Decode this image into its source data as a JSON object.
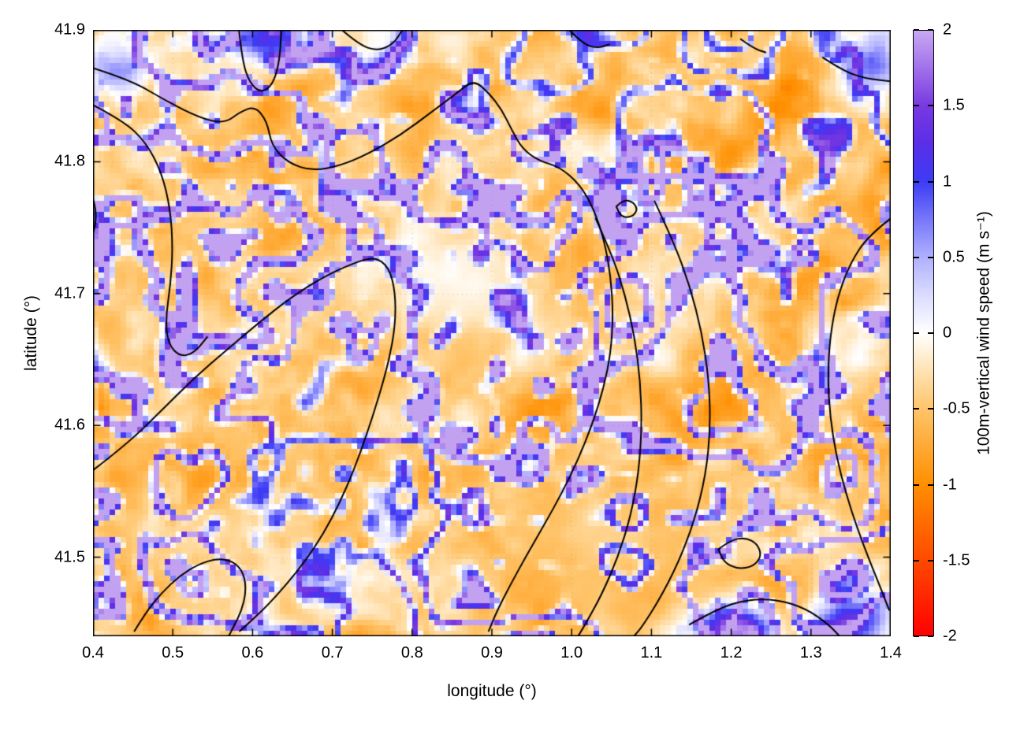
{
  "chart_data": {
    "type": "heatmap",
    "title": "",
    "xlabel": "longitude (°)",
    "ylabel": "latitude (°)",
    "x_range": [
      0.4,
      1.4
    ],
    "y_range": [
      41.44,
      41.9
    ],
    "x_ticks": [
      "0.4",
      "0.5",
      "0.6",
      "0.7",
      "0.8",
      "0.9",
      "1.0",
      "1.1",
      "1.2",
      "1.3",
      "1.4"
    ],
    "y_ticks": [
      "41.5",
      "41.6",
      "41.7",
      "41.8",
      "41.9"
    ],
    "grid": "faint dotted gridlines at major ticks",
    "legend_position": "none",
    "field_description": "Pixelated (~7 px cells) map of 100 m vertical wind speed: thin sinuous blue/purple filaments of updraft (+0.5 to +1.5 m/s) forming cellular networks over a light-orange background of weak downdraft (-0.3 to -1 m/s); paler smooth patch near (0.86, 41.71); smoother orange region near (1.0, 41.5); intense blue streaks along the bottom-right edge near (1.2, 41.45); black terrain contour lines overlaid.",
    "value_field": "100m vertical wind speed (m/s)",
    "colorbar": {
      "label": "100m-vertical wind speed (m s⁻¹)",
      "range": [
        -2,
        2
      ],
      "ticks": [
        "-2",
        "-1.5",
        "-1",
        "-0.5",
        "0",
        "0.5",
        "1",
        "1.5",
        "2"
      ],
      "colormap_stops": [
        [
          -2.0,
          "#ff0000"
        ],
        [
          -1.5,
          "#ff4a00"
        ],
        [
          -1.0,
          "#ff8f00"
        ],
        [
          -0.5,
          "#ffc46a"
        ],
        [
          -0.25,
          "#ffe2b2"
        ],
        [
          0.0,
          "#ffffff"
        ],
        [
          0.25,
          "#dcdcff"
        ],
        [
          0.5,
          "#b0b0ff"
        ],
        [
          0.75,
          "#7878fa"
        ],
        [
          1.0,
          "#3c3cf5"
        ],
        [
          1.25,
          "#5a2ee8"
        ],
        [
          1.5,
          "#7838e0"
        ],
        [
          1.75,
          "#a070ea"
        ],
        [
          2.0,
          "#c8a8f2"
        ]
      ]
    },
    "overlay_contours": {
      "color": "#000000",
      "lines": [
        [
          [
            0.4,
            41.871
          ],
          [
            0.447,
            41.862
          ],
          [
            0.492,
            41.846
          ],
          [
            0.535,
            41.833
          ],
          [
            0.565,
            41.829
          ],
          [
            0.585,
            41.838
          ],
          [
            0.603,
            41.842
          ],
          [
            0.618,
            41.831
          ],
          [
            0.624,
            41.812
          ],
          [
            0.645,
            41.799
          ],
          [
            0.675,
            41.793
          ],
          [
            0.71,
            41.797
          ],
          [
            0.745,
            41.806
          ],
          [
            0.785,
            41.82
          ],
          [
            0.825,
            41.838
          ],
          [
            0.858,
            41.853
          ],
          [
            0.877,
            41.862
          ],
          [
            0.895,
            41.853
          ],
          [
            0.912,
            41.84
          ],
          [
            0.925,
            41.824
          ],
          [
            0.938,
            41.81
          ],
          [
            0.958,
            41.801
          ],
          [
            0.985,
            41.796
          ],
          [
            1.01,
            41.783
          ],
          [
            1.028,
            41.764
          ],
          [
            1.041,
            41.74
          ],
          [
            1.049,
            41.713
          ],
          [
            1.052,
            41.684
          ],
          [
            1.049,
            41.655
          ],
          [
            1.04,
            41.628
          ],
          [
            1.026,
            41.601
          ],
          [
            1.008,
            41.574
          ],
          [
            0.988,
            41.549
          ],
          [
            0.966,
            41.525
          ],
          [
            0.944,
            41.502
          ],
          [
            0.924,
            41.48
          ],
          [
            0.907,
            41.46
          ],
          [
            0.896,
            41.444
          ]
        ],
        [
          [
            0.4,
            41.843
          ],
          [
            0.438,
            41.831
          ],
          [
            0.466,
            41.815
          ],
          [
            0.486,
            41.792
          ],
          [
            0.497,
            41.764
          ],
          [
            0.5,
            41.734
          ],
          [
            0.497,
            41.706
          ],
          [
            0.491,
            41.681
          ],
          [
            0.494,
            41.662
          ],
          [
            0.509,
            41.652
          ],
          [
            0.527,
            41.655
          ],
          [
            0.543,
            41.667
          ]
        ],
        [
          [
            0.583,
            41.9
          ],
          [
            0.587,
            41.877
          ],
          [
            0.596,
            41.86
          ],
          [
            0.611,
            41.852
          ],
          [
            0.626,
            41.859
          ],
          [
            0.634,
            41.877
          ],
          [
            0.636,
            41.9
          ]
        ],
        [
          [
            0.4,
            41.566
          ],
          [
            0.443,
            41.586
          ],
          [
            0.487,
            41.612
          ],
          [
            0.527,
            41.636
          ],
          [
            0.567,
            41.657
          ],
          [
            0.608,
            41.678
          ],
          [
            0.65,
            41.698
          ],
          [
            0.69,
            41.713
          ],
          [
            0.726,
            41.723
          ],
          [
            0.753,
            41.728
          ],
          [
            0.771,
            41.72
          ],
          [
            0.779,
            41.701
          ],
          [
            0.779,
            41.676
          ],
          [
            0.771,
            41.649
          ],
          [
            0.758,
            41.621
          ],
          [
            0.743,
            41.593
          ],
          [
            0.727,
            41.566
          ],
          [
            0.709,
            41.541
          ],
          [
            0.689,
            41.518
          ],
          [
            0.666,
            41.497
          ],
          [
            0.642,
            41.479
          ],
          [
            0.618,
            41.463
          ],
          [
            0.597,
            41.451
          ],
          [
            0.584,
            41.444
          ]
        ],
        [
          [
            0.452,
            41.444
          ],
          [
            0.466,
            41.458
          ],
          [
            0.486,
            41.473
          ],
          [
            0.509,
            41.486
          ],
          [
            0.533,
            41.495
          ],
          [
            0.556,
            41.499
          ],
          [
            0.576,
            41.497
          ],
          [
            0.589,
            41.488
          ],
          [
            0.592,
            41.474
          ],
          [
            0.586,
            41.459
          ],
          [
            0.576,
            41.447
          ],
          [
            0.57,
            41.44
          ]
        ],
        [
          [
            1.03,
            41.757
          ],
          [
            1.051,
            41.729
          ],
          [
            1.067,
            41.699
          ],
          [
            1.079,
            41.667
          ],
          [
            1.086,
            41.634
          ],
          [
            1.088,
            41.599
          ],
          [
            1.084,
            41.564
          ],
          [
            1.074,
            41.531
          ],
          [
            1.058,
            41.5
          ],
          [
            1.038,
            41.472
          ],
          [
            1.018,
            41.45
          ],
          [
            1.008,
            41.44
          ]
        ],
        [
          [
            1.104,
            41.77
          ],
          [
            1.128,
            41.739
          ],
          [
            1.148,
            41.706
          ],
          [
            1.163,
            41.671
          ],
          [
            1.172,
            41.635
          ],
          [
            1.174,
            41.598
          ],
          [
            1.168,
            41.562
          ],
          [
            1.154,
            41.528
          ],
          [
            1.134,
            41.496
          ],
          [
            1.11,
            41.468
          ],
          [
            1.088,
            41.447
          ],
          [
            1.078,
            41.44
          ]
        ],
        [
          [
            1.4,
            41.757
          ],
          [
            1.372,
            41.744
          ],
          [
            1.349,
            41.723
          ],
          [
            1.333,
            41.697
          ],
          [
            1.324,
            41.668
          ],
          [
            1.321,
            41.637
          ],
          [
            1.324,
            41.606
          ],
          [
            1.332,
            41.576
          ],
          [
            1.344,
            41.548
          ],
          [
            1.358,
            41.522
          ],
          [
            1.373,
            41.498
          ],
          [
            1.387,
            41.477
          ],
          [
            1.398,
            41.46
          ]
        ],
        [
          [
            1.056,
            41.766
          ],
          [
            1.064,
            41.771
          ],
          [
            1.076,
            41.77
          ],
          [
            1.083,
            41.764
          ],
          [
            1.076,
            41.758
          ],
          [
            1.062,
            41.758
          ],
          [
            1.056,
            41.766
          ]
        ],
        [
          [
            1.184,
            41.506
          ],
          [
            1.199,
            41.513
          ],
          [
            1.218,
            41.515
          ],
          [
            1.233,
            41.51
          ],
          [
            1.238,
            41.501
          ],
          [
            1.228,
            41.493
          ],
          [
            1.208,
            41.491
          ],
          [
            1.191,
            41.496
          ],
          [
            1.184,
            41.506
          ]
        ],
        [
          [
            1.148,
            41.449
          ],
          [
            1.183,
            41.461
          ],
          [
            1.22,
            41.468
          ],
          [
            1.258,
            41.468
          ],
          [
            1.294,
            41.461
          ],
          [
            1.322,
            41.449
          ],
          [
            1.336,
            41.44
          ]
        ],
        [
          [
            0.712,
            41.9
          ],
          [
            0.733,
            41.889
          ],
          [
            0.756,
            41.884
          ],
          [
            0.776,
            41.889
          ],
          [
            0.788,
            41.9
          ]
        ],
        [
          [
            0.997,
            41.9
          ],
          [
            1.013,
            41.89
          ],
          [
            1.031,
            41.886
          ],
          [
            1.047,
            41.889
          ]
        ],
        [
          [
            1.315,
            41.879
          ],
          [
            1.34,
            41.869
          ],
          [
            1.369,
            41.863
          ],
          [
            1.4,
            41.861
          ]
        ],
        [
          [
            1.212,
            41.893
          ],
          [
            1.228,
            41.886
          ],
          [
            1.243,
            41.883
          ]
        ],
        [
          [
            0.4,
            41.772
          ],
          [
            0.404,
            41.763
          ],
          [
            0.403,
            41.752
          ],
          [
            0.4,
            41.746
          ]
        ]
      ]
    }
  }
}
